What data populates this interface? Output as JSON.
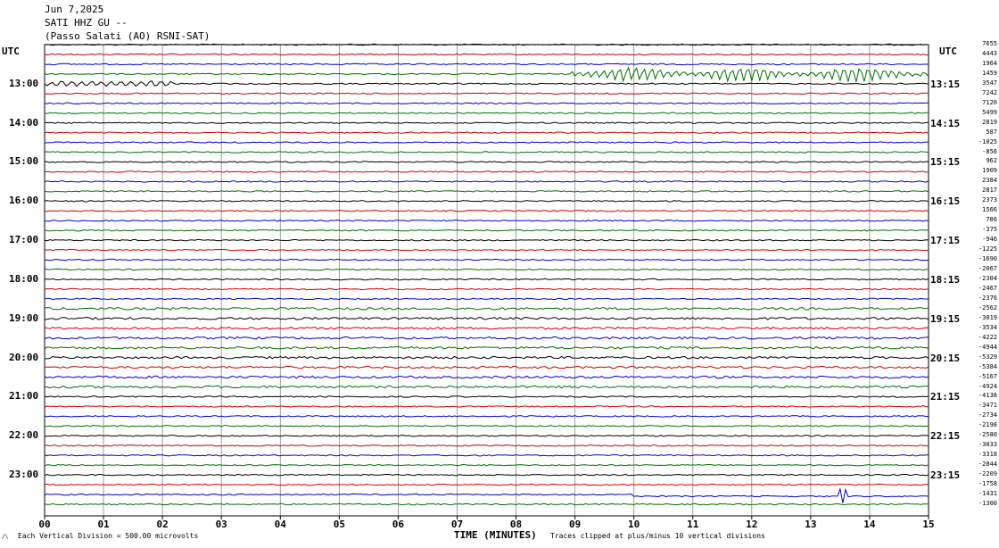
{
  "header": {
    "date": "Jun 7,2025",
    "station": "SATI HHZ GU --",
    "location": "(Passo Salati (AO) RSNI-SAT)"
  },
  "utc_label_left": "UTC",
  "utc_label_right": "UTC",
  "footer": {
    "vertical_division": "Each Vertical Division =  500.00 microvolts",
    "clip_note": "Traces clipped at plus/minus 10 vertical divisions",
    "corner_mark": "/\\"
  },
  "colors": {
    "black": "#000000",
    "red": "#d00000",
    "blue": "#0000d0",
    "green": "#007000",
    "grid": "#888888"
  },
  "chart_data": {
    "type": "line",
    "title": "SATI HHZ GU --",
    "xlabel": "TIME (MINUTES)",
    "xlim": [
      0,
      15
    ],
    "x_ticks": [
      "00",
      "01",
      "02",
      "03",
      "04",
      "05",
      "06",
      "07",
      "08",
      "09",
      "10",
      "11",
      "12",
      "13",
      "14",
      "15"
    ],
    "left_time_labels": [
      "13:00",
      "14:00",
      "15:00",
      "16:00",
      "17:00",
      "18:00",
      "19:00",
      "20:00",
      "21:00",
      "22:00",
      "23:00"
    ],
    "right_time_labels": [
      "13:15",
      "14:15",
      "15:15",
      "16:15",
      "17:15",
      "18:15",
      "19:15",
      "20:15",
      "21:15",
      "22:15",
      "23:15"
    ],
    "trace_count": 48,
    "trace_color_cycle": [
      "black",
      "red",
      "blue",
      "green"
    ],
    "first_labeled_trace": 4,
    "trace_offsets": [
      "7655",
      "4443",
      "1964",
      "1459",
      "3547",
      "7242",
      "7120",
      "5499",
      "2819",
      "587",
      "-1025",
      "-856",
      "962",
      "1909",
      "2384",
      "2817",
      "2373",
      "1566",
      "786",
      "-375",
      "-946",
      "-1225",
      "-1690",
      "-2067",
      "-2304",
      "-2467",
      "-2376",
      "-2562",
      "-3019",
      "-3534",
      "-4222",
      "-4944",
      "-5329",
      "-5384",
      "-5167",
      "-4924",
      "-4138",
      "-3471",
      "-2734",
      "-2198",
      "-2580",
      "-3033",
      "-3318",
      "-2844",
      "-2209",
      "-1758",
      "-1431",
      "-1300"
    ],
    "events": [
      {
        "trace": 3,
        "start_min": 8.9,
        "end_min": 15.0,
        "amplitude": "high"
      },
      {
        "trace": 4,
        "start_min": 0.0,
        "end_min": 2.2,
        "amplitude": "medium"
      },
      {
        "trace": 46,
        "start_min": 10.0,
        "end_min": 15.0,
        "amplitude": "step"
      },
      {
        "trace": 46,
        "start_min": 13.5,
        "end_min": 13.6,
        "amplitude": "spike"
      }
    ]
  }
}
